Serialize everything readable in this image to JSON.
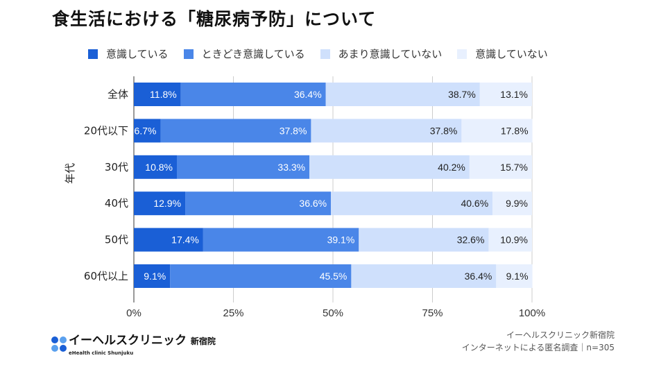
{
  "title": "食生活における「糖尿病予防」について",
  "chart_data": {
    "type": "bar",
    "orientation": "horizontal-stacked-100",
    "ylabel": "年代",
    "categories": [
      "全体",
      "20代以下",
      "30代",
      "40代",
      "50代",
      "60代以上"
    ],
    "series": [
      {
        "name": "意識している",
        "color": "#1a5fd6",
        "values": [
          11.8,
          6.7,
          10.8,
          12.9,
          17.4,
          9.1
        ]
      },
      {
        "name": "ときどき意識している",
        "color": "#4a86e8",
        "values": [
          36.4,
          37.8,
          33.3,
          36.6,
          39.1,
          45.5
        ]
      },
      {
        "name": "あまり意識していない",
        "color": "#cfe0fc",
        "values": [
          38.7,
          37.8,
          40.2,
          40.6,
          32.6,
          36.4
        ]
      },
      {
        "name": "意識していない",
        "color": "#e8f0fe",
        "values": [
          13.1,
          17.8,
          15.7,
          9.9,
          10.9,
          9.1
        ]
      }
    ],
    "xticks": [
      "0%",
      "25%",
      "50%",
      "75%",
      "100%"
    ],
    "xlim": [
      0,
      100
    ],
    "grid": true,
    "legend": "top"
  },
  "logo": {
    "main": "イーヘルスクリニック",
    "suffix": "新宿院",
    "sub": "eHealth clinic Shunjuku"
  },
  "source": {
    "line1": "イーヘルスクリニック新宿院",
    "line2": "インターネットによる匿名調査｜n=305"
  }
}
